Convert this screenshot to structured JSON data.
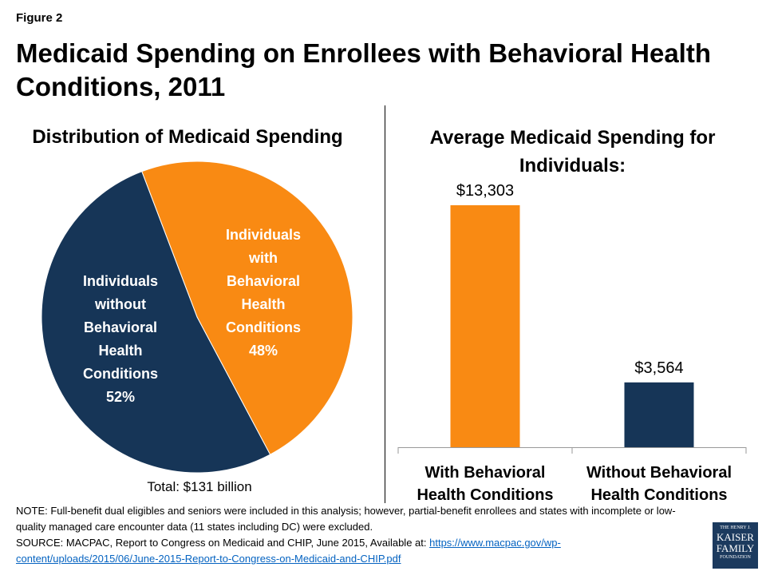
{
  "figure_label": "Figure 2",
  "title": "Medicaid Spending on Enrollees with Behavioral Health Conditions, 2011",
  "chart_data": [
    {
      "type": "pie",
      "title": "Distribution of Medicaid Spending",
      "slices": [
        {
          "label": [
            "Individuals",
            "with",
            "Behavioral",
            "Health",
            "Conditions",
            "48%"
          ],
          "value": 48,
          "color": "#f98a13"
        },
        {
          "label": [
            "Individuals",
            "without",
            "Behavioral",
            "Health",
            "Conditions",
            "52%"
          ],
          "value": 52,
          "color": "#163557"
        }
      ],
      "annotation": "Total: $131 billion"
    },
    {
      "type": "bar",
      "title": "Average Medicaid Spending for Individuals:",
      "categories": [
        [
          "With Behavioral",
          "Health Conditions"
        ],
        [
          "Without Behavioral",
          "Health Conditions"
        ]
      ],
      "values": [
        13303,
        3564
      ],
      "data_labels": [
        "$13,303",
        "$3,564"
      ],
      "colors": [
        "#f98a13",
        "#163557"
      ],
      "ylim": [
        0,
        14000
      ],
      "grid": false
    }
  ],
  "notes": {
    "note": "NOTE: Full-benefit dual eligibles and seniors were included in this analysis; however, partial-benefit enrollees and states with incomplete or low-quality managed care encounter data (11 states including DC) were excluded.",
    "source_prefix": "SOURCE:  MACPAC, Report to Congress on Medicaid and CHIP, June 2015, Available at: ",
    "source_link": "https://www.macpac.gov/wp-content/uploads/2015/06/June-2015-Report-to-Congress-on-Medicaid-and-CHIP.pdf"
  },
  "logo": {
    "line1": "THE HENRY J.",
    "line2": "KAISER",
    "line3": "FAMILY",
    "line4": "FOUNDATION"
  }
}
